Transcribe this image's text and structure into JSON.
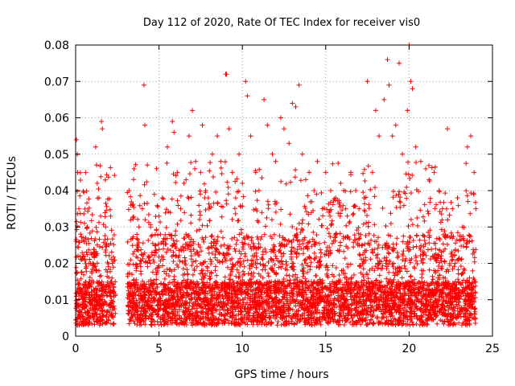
{
  "chart_data": {
    "type": "scatter",
    "title": "Day 112 of 2020, Rate Of TEC Index for receiver vis0",
    "xlabel": "GPS time / hours",
    "ylabel": "ROTI / TECUs",
    "xlim": [
      0,
      25
    ],
    "ylim": [
      0,
      0.08
    ],
    "x_ticks": [
      0,
      5,
      10,
      15,
      20,
      25
    ],
    "y_ticks": [
      0,
      0.01,
      0.02,
      0.03,
      0.04,
      0.05,
      0.06,
      0.07,
      0.08
    ],
    "x_tick_labels": [
      "0",
      "5",
      "10",
      "15",
      "20",
      "25"
    ],
    "y_tick_labels": [
      "0",
      "0.01",
      "0.02",
      "0.03",
      "0.04",
      "0.05",
      "0.06",
      "0.07",
      "0.08"
    ],
    "grid": true,
    "marker": "plus",
    "marker_color": "#ff0000",
    "data_gap_hours": [
      2.4,
      3.1
    ],
    "series": [
      {
        "values_note_points": [
          [
            0.05,
            0.054
          ],
          [
            0.1,
            0.05
          ],
          [
            0.12,
            0.045
          ],
          [
            0.2,
            0.035
          ],
          [
            0.3,
            0.028
          ],
          [
            0.5,
            0.022
          ],
          [
            0.7,
            0.03
          ],
          [
            0.9,
            0.02
          ],
          [
            1.2,
            0.052
          ],
          [
            1.25,
            0.047
          ],
          [
            1.3,
            0.042
          ],
          [
            1.4,
            0.038
          ],
          [
            1.5,
            0.033
          ],
          [
            1.55,
            0.059
          ],
          [
            1.6,
            0.057
          ],
          [
            1.8,
            0.03
          ],
          [
            2.0,
            0.025
          ],
          [
            2.1,
            0.033
          ],
          [
            2.2,
            0.02
          ],
          [
            3.2,
            0.04
          ],
          [
            3.3,
            0.036
          ],
          [
            3.5,
            0.046
          ],
          [
            3.8,
            0.03
          ],
          [
            4.0,
            0.035
          ],
          [
            4.1,
            0.069
          ],
          [
            4.15,
            0.058
          ],
          [
            4.3,
            0.047
          ],
          [
            4.5,
            0.03
          ],
          [
            4.8,
            0.025
          ],
          [
            5.0,
            0.033
          ],
          [
            5.2,
            0.038
          ],
          [
            5.5,
            0.052
          ],
          [
            5.8,
            0.059
          ],
          [
            5.9,
            0.056
          ],
          [
            6.1,
            0.045
          ],
          [
            6.3,
            0.035
          ],
          [
            6.5,
            0.042
          ],
          [
            6.8,
            0.055
          ],
          [
            7.0,
            0.062
          ],
          [
            7.2,
            0.048
          ],
          [
            7.5,
            0.045
          ],
          [
            7.6,
            0.058
          ],
          [
            7.8,
            0.04
          ],
          [
            8.0,
            0.035
          ],
          [
            8.2,
            0.05
          ],
          [
            8.5,
            0.055
          ],
          [
            8.7,
            0.048
          ],
          [
            9.0,
            0.072
          ],
          [
            9.05,
            0.072
          ],
          [
            9.2,
            0.057
          ],
          [
            9.4,
            0.045
          ],
          [
            9.6,
            0.038
          ],
          [
            9.8,
            0.05
          ],
          [
            10.0,
            0.042
          ],
          [
            10.2,
            0.07
          ],
          [
            10.3,
            0.066
          ],
          [
            10.5,
            0.055
          ],
          [
            10.8,
            0.045
          ],
          [
            11.0,
            0.04
          ],
          [
            11.3,
            0.065
          ],
          [
            11.5,
            0.058
          ],
          [
            11.8,
            0.05
          ],
          [
            12.0,
            0.048
          ],
          [
            12.3,
            0.06
          ],
          [
            12.5,
            0.057
          ],
          [
            12.8,
            0.053
          ],
          [
            13.0,
            0.064
          ],
          [
            13.2,
            0.063
          ],
          [
            13.4,
            0.069
          ],
          [
            13.6,
            0.05
          ],
          [
            13.8,
            0.043
          ],
          [
            14.0,
            0.045
          ],
          [
            14.3,
            0.04
          ],
          [
            14.5,
            0.048
          ],
          [
            14.8,
            0.035
          ],
          [
            15.0,
            0.045
          ],
          [
            15.3,
            0.04
          ],
          [
            15.6,
            0.038
          ],
          [
            15.9,
            0.042
          ],
          [
            16.2,
            0.035
          ],
          [
            16.5,
            0.045
          ],
          [
            16.8,
            0.04
          ],
          [
            17.0,
            0.035
          ],
          [
            17.3,
            0.038
          ],
          [
            17.5,
            0.07
          ],
          [
            17.8,
            0.045
          ],
          [
            18.0,
            0.062
          ],
          [
            18.2,
            0.055
          ],
          [
            18.5,
            0.065
          ],
          [
            18.7,
            0.076
          ],
          [
            18.8,
            0.069
          ],
          [
            19.0,
            0.055
          ],
          [
            19.2,
            0.058
          ],
          [
            19.4,
            0.075
          ],
          [
            19.6,
            0.05
          ],
          [
            19.9,
            0.062
          ],
          [
            20.0,
            0.08
          ],
          [
            20.1,
            0.07
          ],
          [
            20.2,
            0.068
          ],
          [
            20.4,
            0.052
          ],
          [
            20.7,
            0.048
          ],
          [
            21.0,
            0.046
          ],
          [
            21.2,
            0.043
          ],
          [
            21.5,
            0.045
          ],
          [
            21.8,
            0.04
          ],
          [
            22.0,
            0.035
          ],
          [
            22.3,
            0.057
          ],
          [
            22.6,
            0.035
          ],
          [
            22.9,
            0.038
          ],
          [
            23.2,
            0.03
          ],
          [
            23.5,
            0.052
          ],
          [
            23.7,
            0.055
          ],
          [
            23.9,
            0.045
          ],
          [
            24.0,
            0.035
          ]
        ]
      }
    ]
  }
}
